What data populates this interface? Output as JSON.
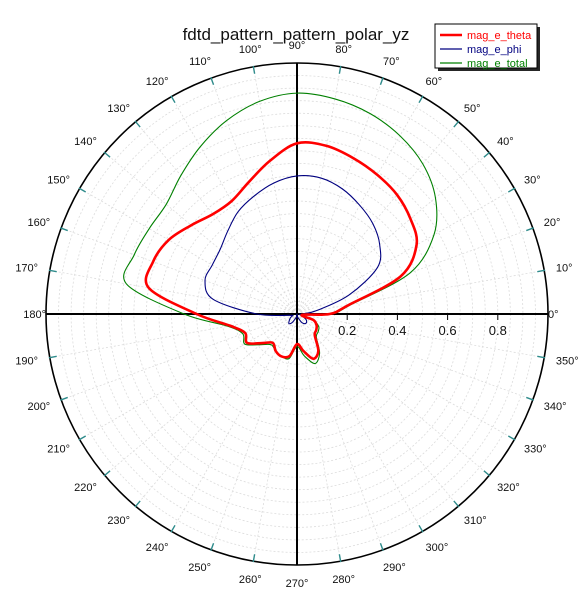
{
  "chart_data": {
    "type": "polar",
    "title": "fdtd_pattern_pattern_polar_yz",
    "angle_unit": "degrees",
    "angle_labels": [
      "0°",
      "10°",
      "20°",
      "30°",
      "40°",
      "50°",
      "60°",
      "70°",
      "80°",
      "90°",
      "100°",
      "110°",
      "120°",
      "130°",
      "140°",
      "150°",
      "160°",
      "170°",
      "180°",
      "190°",
      "200°",
      "210°",
      "220°",
      "230°",
      "240°",
      "250°",
      "260°",
      "270°",
      "280°",
      "290°",
      "300°",
      "310°",
      "320°",
      "330°",
      "340°",
      "350°"
    ],
    "radial_ticks": [
      0.2,
      0.4,
      0.6,
      0.8
    ],
    "radial_tick_labels": [
      "0.2",
      "0.4",
      "0.6",
      "0.8"
    ],
    "rlim": [
      0,
      1.0
    ],
    "grid": true,
    "legend_position": "top-right",
    "series": [
      {
        "name": "mag_e_theta",
        "color": "#ff0000",
        "theta": [
          0,
          10,
          20,
          30,
          40,
          50,
          60,
          70,
          80,
          90,
          100,
          110,
          120,
          130,
          140,
          150,
          160,
          170,
          180,
          190,
          200,
          210,
          220,
          230,
          240,
          250,
          260,
          270,
          280,
          290,
          300,
          310,
          320,
          330,
          340,
          350,
          360
        ],
        "r": [
          0.13,
          0.21,
          0.44,
          0.55,
          0.59,
          0.62,
          0.64,
          0.66,
          0.68,
          0.68,
          0.62,
          0.56,
          0.52,
          0.52,
          0.55,
          0.59,
          0.61,
          0.6,
          0.4,
          0.27,
          0.22,
          0.23,
          0.18,
          0.15,
          0.17,
          0.18,
          0.17,
          0.12,
          0.15,
          0.19,
          0.17,
          0.11,
          0.1,
          0.09,
          0.07,
          0.02,
          0.13
        ]
      },
      {
        "name": "mag_e_phi",
        "color": "#000080",
        "theta": [
          0,
          10,
          20,
          30,
          40,
          50,
          60,
          70,
          80,
          90,
          100,
          110,
          120,
          130,
          140,
          150,
          160,
          170,
          180,
          190,
          200,
          210,
          220,
          230,
          240,
          250,
          260,
          270,
          280,
          290,
          300,
          310,
          320,
          330,
          340,
          350,
          360
        ],
        "r": [
          0.02,
          0.08,
          0.22,
          0.37,
          0.43,
          0.47,
          0.5,
          0.53,
          0.55,
          0.55,
          0.53,
          0.5,
          0.47,
          0.43,
          0.4,
          0.39,
          0.39,
          0.34,
          0.16,
          0.03,
          0.02,
          0.03,
          0.04,
          0.05,
          0.04,
          0.02,
          0.01,
          0.0,
          0.01,
          0.02,
          0.04,
          0.05,
          0.05,
          0.04,
          0.02,
          0.01,
          0.02
        ]
      },
      {
        "name": "mag_e_total",
        "color": "#008000",
        "theta": [
          0,
          10,
          20,
          30,
          40,
          50,
          60,
          70,
          80,
          90,
          100,
          110,
          120,
          130,
          140,
          150,
          160,
          170,
          180,
          190,
          200,
          210,
          220,
          230,
          240,
          250,
          260,
          270,
          280,
          290,
          300,
          310,
          320,
          330,
          340,
          350,
          360
        ],
        "r": [
          0.14,
          0.22,
          0.48,
          0.63,
          0.72,
          0.78,
          0.82,
          0.85,
          0.87,
          0.88,
          0.86,
          0.82,
          0.77,
          0.72,
          0.68,
          0.68,
          0.69,
          0.69,
          0.45,
          0.28,
          0.23,
          0.24,
          0.19,
          0.16,
          0.17,
          0.18,
          0.18,
          0.13,
          0.17,
          0.21,
          0.18,
          0.12,
          0.11,
          0.1,
          0.07,
          0.03,
          0.14
        ]
      }
    ]
  }
}
